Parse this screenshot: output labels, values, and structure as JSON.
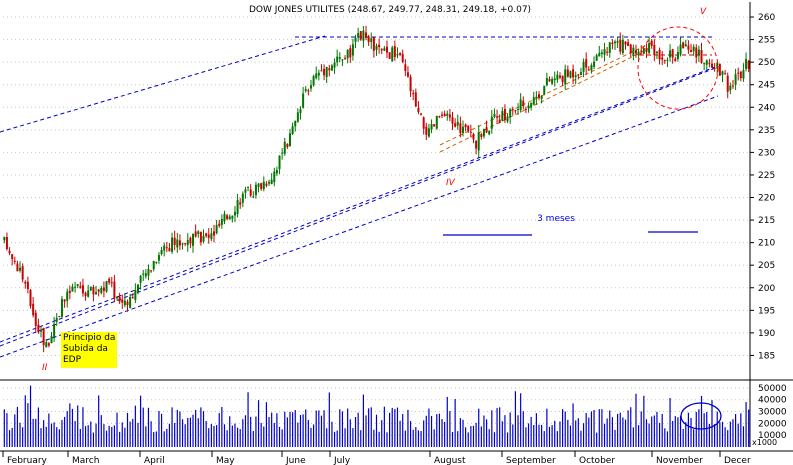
{
  "chart_data": {
    "type": "candlestick",
    "title": "DOW JONES UTILITES (248.67, 249.77, 248.31, 249.18, +0.07)",
    "price_axis": {
      "ylim": [
        180,
        262
      ],
      "ticks": [
        185,
        190,
        195,
        200,
        205,
        210,
        215,
        220,
        225,
        230,
        235,
        240,
        245,
        250,
        255,
        260
      ]
    },
    "volume_axis": {
      "ylim": [
        0,
        55000
      ],
      "ticks": [
        10000,
        20000,
        30000,
        40000,
        50000
      ],
      "unit_label": "x1000"
    },
    "months": [
      "February",
      "March",
      "April",
      "May",
      "June",
      "July",
      "August",
      "September",
      "October",
      "November",
      "Decer"
    ],
    "price_anchors": [
      [
        0,
        210
      ],
      [
        6,
        204
      ],
      [
        12,
        193
      ],
      [
        16,
        187
      ],
      [
        20,
        194
      ],
      [
        26,
        200
      ],
      [
        34,
        199
      ],
      [
        40,
        201
      ],
      [
        44,
        197
      ],
      [
        48,
        198
      ],
      [
        54,
        203
      ],
      [
        60,
        209
      ],
      [
        66,
        210
      ],
      [
        72,
        211
      ],
      [
        78,
        211
      ],
      [
        84,
        215
      ],
      [
        90,
        220
      ],
      [
        96,
        222
      ],
      [
        102,
        225
      ],
      [
        108,
        232
      ],
      [
        112,
        238
      ],
      [
        116,
        245
      ],
      [
        120,
        248
      ],
      [
        126,
        250
      ],
      [
        132,
        252
      ],
      [
        136,
        256
      ],
      [
        140,
        254
      ],
      [
        144,
        252
      ],
      [
        150,
        252
      ],
      [
        154,
        246
      ],
      [
        158,
        238
      ],
      [
        162,
        234
      ],
      [
        166,
        238
      ],
      [
        170,
        237
      ],
      [
        176,
        235
      ],
      [
        180,
        232
      ],
      [
        184,
        236
      ],
      [
        190,
        238
      ],
      [
        196,
        240
      ],
      [
        202,
        242
      ],
      [
        208,
        246
      ],
      [
        214,
        247
      ],
      [
        220,
        249
      ],
      [
        226,
        250
      ],
      [
        232,
        254
      ],
      [
        238,
        253
      ],
      [
        244,
        253
      ],
      [
        250,
        252
      ],
      [
        256,
        251
      ],
      [
        260,
        255
      ],
      [
        264,
        252
      ],
      [
        268,
        250
      ],
      [
        272,
        249
      ],
      [
        276,
        245
      ],
      [
        280,
        247
      ],
      [
        284,
        250
      ]
    ],
    "volume_seed": 17,
    "annotations": [
      {
        "text": "II",
        "color": "#ff0000"
      },
      {
        "text": "IV",
        "color": "#ff0000"
      },
      {
        "text": "V",
        "color": "#ff0000"
      },
      {
        "text": "3 meses",
        "color": "#0000ff"
      },
      {
        "text": [
          "Principio da",
          "Subida da",
          "EDP"
        ],
        "color": "#000000",
        "background": "#ffff00"
      }
    ],
    "colors": {
      "up": "#007700",
      "down": "#cc0000",
      "trend": "#0000cc",
      "highlight": "#ff0000",
      "volume": "#0000cc"
    }
  }
}
